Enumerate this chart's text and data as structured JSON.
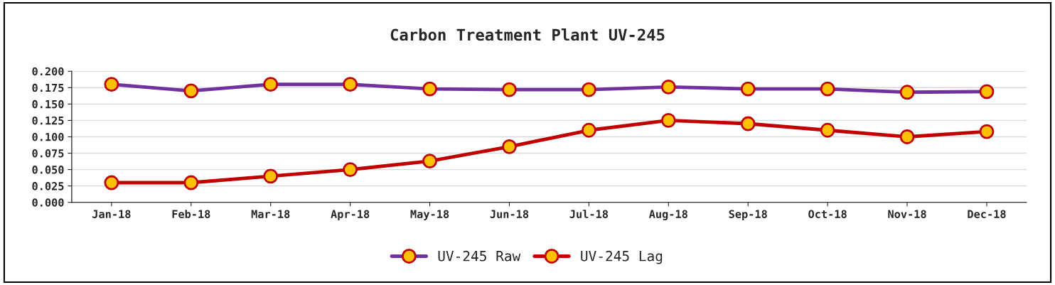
{
  "chart_data": {
    "type": "line",
    "title": "Carbon Treatment Plant UV-245",
    "categories": [
      "Jan-18",
      "Feb-18",
      "Mar-18",
      "Apr-18",
      "May-18",
      "Jun-18",
      "Jul-18",
      "Aug-18",
      "Sep-18",
      "Oct-18",
      "Nov-18",
      "Dec-18"
    ],
    "series": [
      {
        "name": "UV-245 Raw",
        "color": "#7030a0",
        "values": [
          0.18,
          0.17,
          0.18,
          0.18,
          0.173,
          0.172,
          0.172,
          0.176,
          0.173,
          0.173,
          0.168,
          0.169
        ]
      },
      {
        "name": "UV-245 Lag",
        "color": "#c00000",
        "values": [
          0.03,
          0.03,
          0.04,
          0.05,
          0.063,
          0.085,
          0.11,
          0.125,
          0.12,
          0.11,
          0.1,
          0.108
        ]
      }
    ],
    "ylim": [
      0,
      0.2
    ],
    "yticks": [
      {
        "value": 0,
        "label": "0.000"
      },
      {
        "value": 0.025,
        "label": "0.025"
      },
      {
        "value": 0.05,
        "label": "0.050"
      },
      {
        "value": 0.075,
        "label": "0.075"
      },
      {
        "value": 0.1,
        "label": "0.100"
      },
      {
        "value": 0.125,
        "label": "0.125"
      },
      {
        "value": 0.15,
        "label": "0.150"
      },
      {
        "value": 0.175,
        "label": "0.175"
      },
      {
        "value": 0.2,
        "label": "0.200"
      }
    ],
    "grid": "y",
    "legend": "bottom",
    "marker": "circle",
    "line_style": "solid"
  }
}
